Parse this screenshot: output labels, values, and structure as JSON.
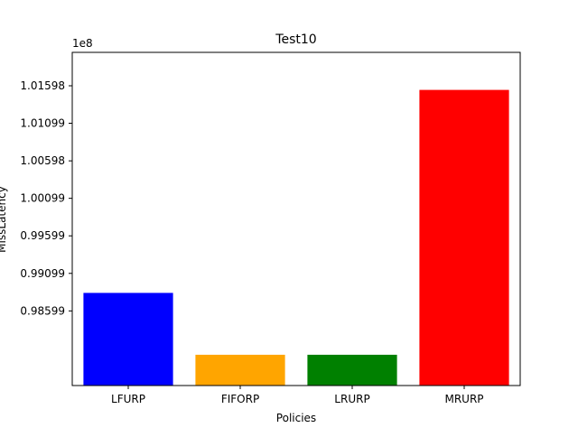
{
  "chart_data": {
    "type": "bar",
    "title": "Test10",
    "xlabel": "Policies",
    "ylabel": "MissLatency",
    "offset_text": "1e8",
    "categories": [
      "LFURP",
      "FIFORP",
      "LRURP",
      "MRURP"
    ],
    "values": [
      98839000,
      98015000,
      98015000,
      101543000
    ],
    "colors": [
      "#0000ff",
      "#ffa500",
      "#008000",
      "#ff0000"
    ],
    "ylim": [
      97605000,
      102043000
    ],
    "yticks": [
      {
        "value": 98599000,
        "label": "0.98599"
      },
      {
        "value": 99099000,
        "label": "0.99099"
      },
      {
        "value": 99599000,
        "label": "0.99599"
      },
      {
        "value": 100099000,
        "label": "1.00099"
      },
      {
        "value": 100598000,
        "label": "1.00598"
      },
      {
        "value": 101099000,
        "label": "1.01099"
      },
      {
        "value": 101598000,
        "label": "1.01598"
      }
    ],
    "grid": false,
    "legend": "none"
  }
}
